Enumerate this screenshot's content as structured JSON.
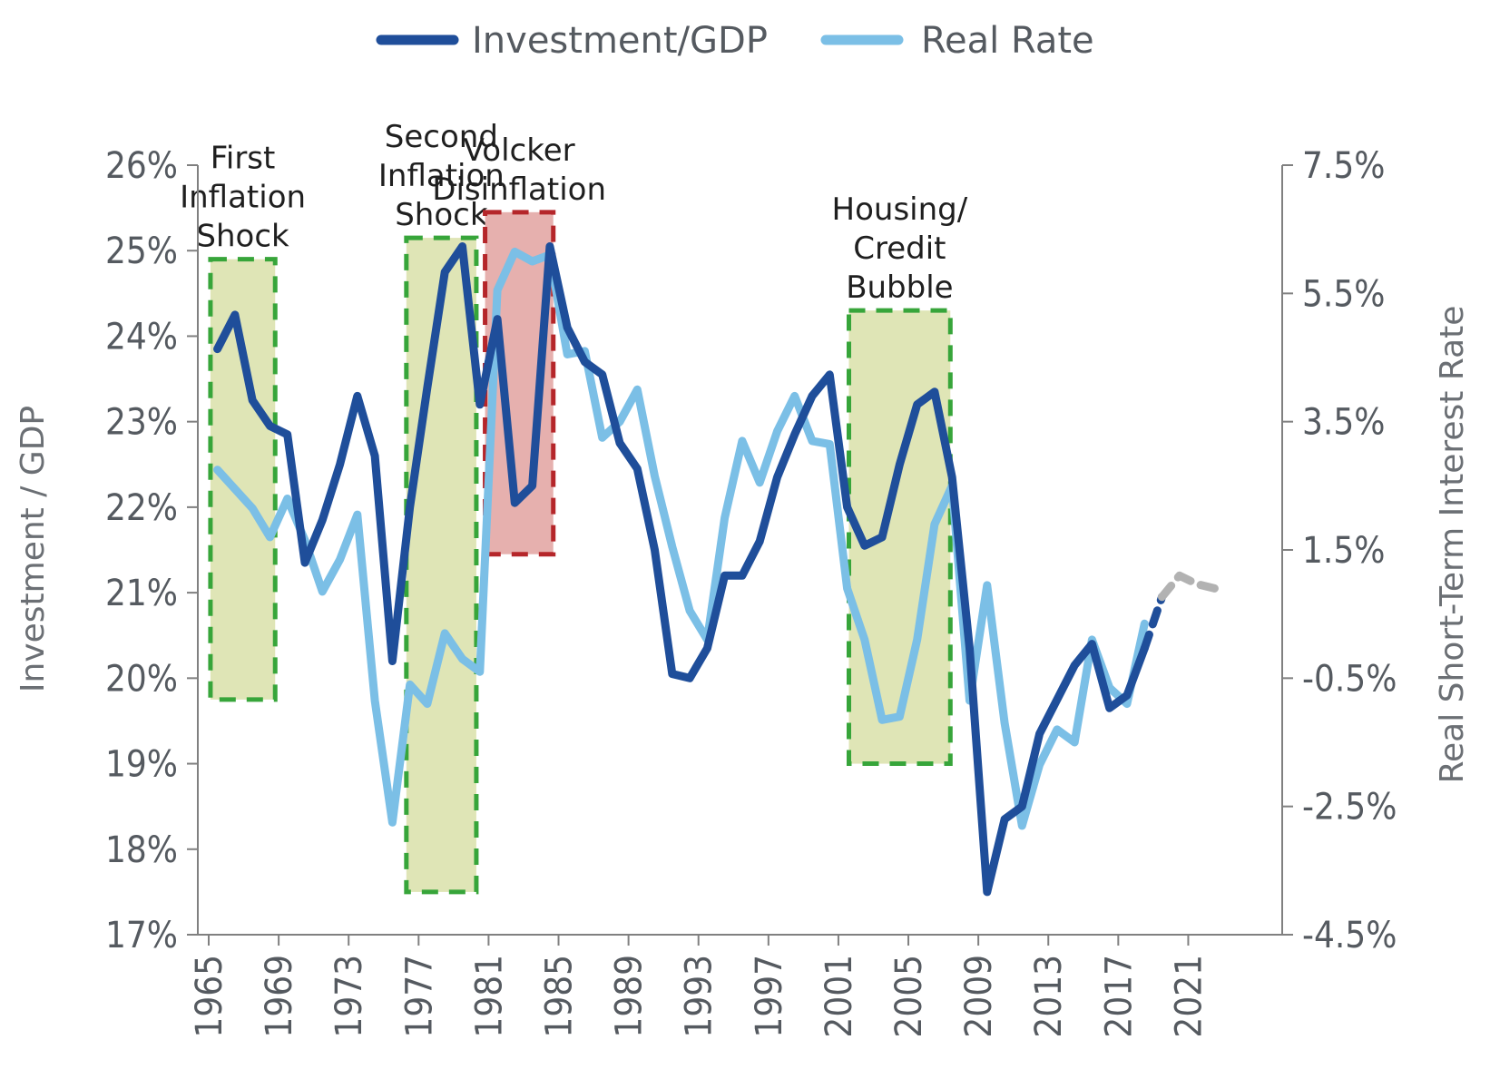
{
  "chart_data": {
    "type": "line",
    "title": "",
    "xlabel": "",
    "ylabel": "Investment / GDP",
    "y2label": "Real Short-Term Interest Rate",
    "xlim": [
      1965,
      2023
    ],
    "ylim": [
      17,
      26
    ],
    "y2lim": [
      -4.5,
      7.5
    ],
    "x_ticks": [
      1965,
      1969,
      1973,
      1977,
      1981,
      1985,
      1989,
      1993,
      1997,
      2001,
      2005,
      2009,
      2013,
      2017,
      2021
    ],
    "y_ticks": [
      "17%",
      "18%",
      "19%",
      "20%",
      "21%",
      "22%",
      "23%",
      "24%",
      "25%",
      "26%"
    ],
    "y2_ticks": [
      "-4.5%",
      "-2.5%",
      "-0.5%",
      "1.5%",
      "3.5%",
      "5.5%",
      "7.5%"
    ],
    "legend": {
      "position": "top-center"
    },
    "series": [
      {
        "name": "Investment/GDP",
        "axis": "left",
        "color": "#1f4e9a",
        "points": [
          [
            1965.5,
            23.85
          ],
          [
            1966.5,
            24.25
          ],
          [
            1967.5,
            23.25
          ],
          [
            1968.5,
            22.95
          ],
          [
            1969.5,
            22.85
          ],
          [
            1970.5,
            21.35
          ],
          [
            1971.5,
            21.85
          ],
          [
            1972.5,
            22.5
          ],
          [
            1973.5,
            23.3
          ],
          [
            1974.5,
            22.6
          ],
          [
            1975.5,
            20.2
          ],
          [
            1976.5,
            22.0
          ],
          [
            1977.5,
            23.4
          ],
          [
            1978.5,
            24.75
          ],
          [
            1979.5,
            25.05
          ],
          [
            1980.5,
            23.2
          ],
          [
            1981.5,
            24.2
          ],
          [
            1982.5,
            22.05
          ],
          [
            1983.5,
            22.25
          ],
          [
            1984.5,
            25.05
          ],
          [
            1985.5,
            24.1
          ],
          [
            1986.5,
            23.7
          ],
          [
            1987.5,
            23.55
          ],
          [
            1988.5,
            22.75
          ],
          [
            1989.5,
            22.45
          ],
          [
            1990.5,
            21.5
          ],
          [
            1991.5,
            20.05
          ],
          [
            1992.5,
            20.0
          ],
          [
            1993.5,
            20.35
          ],
          [
            1994.5,
            21.2
          ],
          [
            1995.5,
            21.2
          ],
          [
            1996.5,
            21.6
          ],
          [
            1997.5,
            22.35
          ],
          [
            1998.5,
            22.85
          ],
          [
            1999.5,
            23.3
          ],
          [
            2000.5,
            23.55
          ],
          [
            2001.5,
            22.0
          ],
          [
            2002.5,
            21.55
          ],
          [
            2003.5,
            21.65
          ],
          [
            2004.5,
            22.5
          ],
          [
            2005.5,
            23.2
          ],
          [
            2006.5,
            23.35
          ],
          [
            2007.5,
            22.35
          ],
          [
            2008.5,
            20.35
          ],
          [
            2009.5,
            17.5
          ],
          [
            2010.5,
            18.35
          ],
          [
            2011.5,
            18.5
          ],
          [
            2012.5,
            19.35
          ],
          [
            2013.5,
            19.75
          ],
          [
            2014.5,
            20.15
          ],
          [
            2015.5,
            20.4
          ],
          [
            2016.5,
            19.65
          ],
          [
            2017.5,
            19.8
          ],
          [
            2018.5,
            20.35
          ]
        ]
      },
      {
        "name": "Real Rate",
        "axis": "right",
        "color": "#7bbfe6",
        "points": [
          [
            1965.5,
            2.75
          ],
          [
            1966.5,
            2.45
          ],
          [
            1967.5,
            2.15
          ],
          [
            1968.5,
            1.7
          ],
          [
            1969.5,
            2.3
          ],
          [
            1970.5,
            1.65
          ],
          [
            1971.5,
            0.85
          ],
          [
            1972.5,
            1.35
          ],
          [
            1973.5,
            2.05
          ],
          [
            1974.5,
            -0.85
          ],
          [
            1975.5,
            -2.75
          ],
          [
            1976.5,
            -0.6
          ],
          [
            1977.5,
            -0.9
          ],
          [
            1978.5,
            0.2
          ],
          [
            1979.5,
            -0.2
          ],
          [
            1980.5,
            -0.4
          ],
          [
            1981.5,
            5.55
          ],
          [
            1982.5,
            6.15
          ],
          [
            1983.5,
            6.0
          ],
          [
            1984.5,
            6.1
          ],
          [
            1985.5,
            4.55
          ],
          [
            1986.5,
            4.6
          ],
          [
            1987.5,
            3.25
          ],
          [
            1988.5,
            3.5
          ],
          [
            1989.5,
            4.0
          ],
          [
            1990.5,
            2.65
          ],
          [
            1991.5,
            1.55
          ],
          [
            1992.5,
            0.55
          ],
          [
            1993.5,
            0.1
          ],
          [
            1994.5,
            2.0
          ],
          [
            1995.5,
            3.2
          ],
          [
            1996.5,
            2.55
          ],
          [
            1997.5,
            3.35
          ],
          [
            1998.5,
            3.9
          ],
          [
            1999.5,
            3.2
          ],
          [
            2000.5,
            3.15
          ],
          [
            2001.5,
            0.9
          ],
          [
            2002.5,
            0.1
          ],
          [
            2003.5,
            -1.15
          ],
          [
            2004.5,
            -1.1
          ],
          [
            2005.5,
            0.1
          ],
          [
            2006.5,
            1.9
          ],
          [
            2007.5,
            2.5
          ],
          [
            2008.5,
            -0.85
          ],
          [
            2009.5,
            0.95
          ],
          [
            2010.5,
            -1.2
          ],
          [
            2011.5,
            -2.8
          ],
          [
            2012.5,
            -1.85
          ],
          [
            2013.5,
            -1.3
          ],
          [
            2014.5,
            -1.5
          ],
          [
            2015.5,
            0.1
          ],
          [
            2016.5,
            -0.65
          ],
          [
            2017.5,
            -0.9
          ],
          [
            2018.5,
            0.35
          ]
        ]
      },
      {
        "name": "",
        "axis": "left",
        "style": "dashed",
        "color": "#1f4e9a",
        "points": [
          [
            2018.5,
            20.35
          ],
          [
            2019.5,
            20.95
          ]
        ]
      },
      {
        "name": "",
        "axis": "left",
        "style": "dashed",
        "color": "#b2b2b2",
        "points": [
          [
            2019.5,
            20.95
          ],
          [
            2020.5,
            21.2
          ],
          [
            2021.5,
            21.1
          ],
          [
            2022.5,
            21.05
          ]
        ]
      }
    ],
    "regions": [
      {
        "label": [
          "First",
          "Inflation",
          "Shock"
        ],
        "x0": 1965.1,
        "x1": 1968.8,
        "y0": 19.75,
        "y1": 24.9,
        "fill": "#dfe5b6",
        "border": "#37a53a"
      },
      {
        "label": [
          "Second",
          "Inflation",
          "Shock"
        ],
        "x0": 1976.3,
        "x1": 1980.3,
        "y0": 17.5,
        "y1": 25.15,
        "fill": "#dfe5b6",
        "border": "#37a53a"
      },
      {
        "label": [
          "Volcker",
          "Disinflation"
        ],
        "x0": 1980.8,
        "x1": 1984.7,
        "y0": 21.45,
        "y1": 25.45,
        "fill": "#e6b0ae",
        "border": "#b5262a"
      },
      {
        "label": [
          "Housing/",
          "Credit",
          "Bubble"
        ],
        "x0": 2001.6,
        "x1": 2007.4,
        "y0": 19.0,
        "y1": 24.3,
        "fill": "#dfe5b6",
        "border": "#37a53a"
      }
    ]
  }
}
